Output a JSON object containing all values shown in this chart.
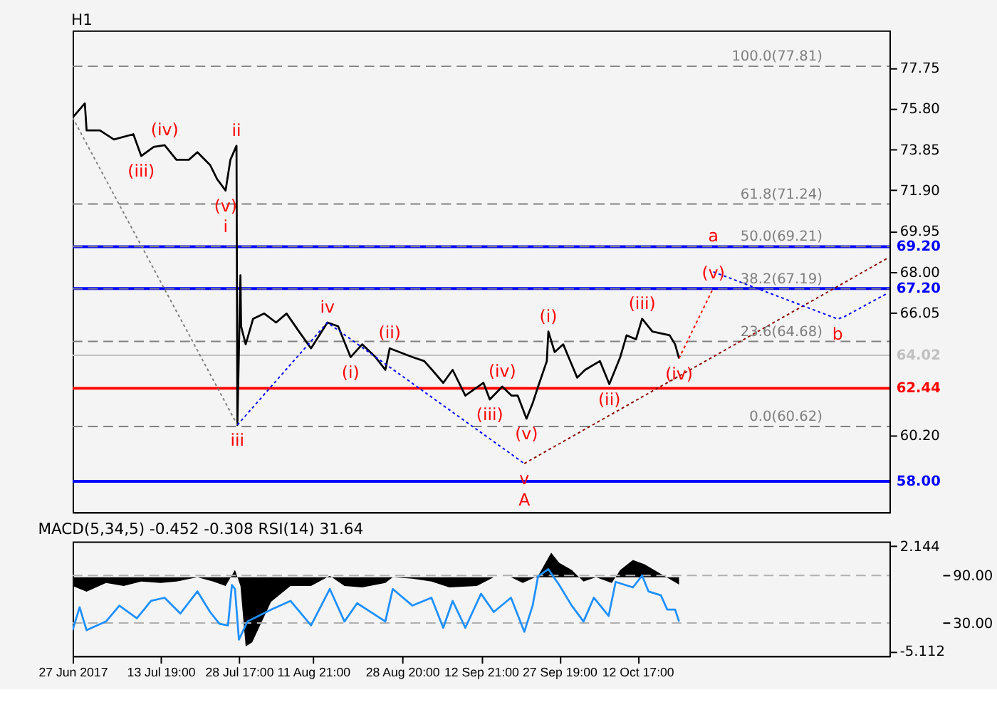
{
  "chart_data": [
    {
      "type": "line",
      "title": "H1",
      "xlim": [
        "2017-06-27T00:00",
        "2017-11-29T18:00"
      ],
      "tick_labels": "y",
      "ylim": [
        56.53,
        79.52
      ],
      "yticks": [
        {
          "value": 60.2,
          "label": "60.20"
        },
        {
          "value": 66.05,
          "label": "66.05"
        },
        {
          "value": 68,
          "label": "68.00"
        },
        {
          "value": 69.95,
          "label": "69.95"
        },
        {
          "value": 71.9,
          "label": "71.90"
        },
        {
          "value": 73.85,
          "label": "73.85"
        },
        {
          "value": 75.8,
          "label": "75.80"
        },
        {
          "value": 77.75,
          "label": "77.75"
        }
      ],
      "grid": false,
      "series": [
        {
          "color": "#000000",
          "line_style": "solid",
          "x": [
            "2017-06-27T00:00",
            "2017-06-29T08:00",
            "2017-06-29T16:00",
            "2017-07-02T05:00",
            "2017-07-04T21:00",
            "2017-07-08T14:00",
            "2017-07-10T02:00",
            "2017-07-12T11:00",
            "2017-07-14T13:00",
            "2017-07-16T19:00",
            "2017-07-19T04:00",
            "2017-07-20T19:00",
            "2017-07-23T05:00",
            "2017-07-24T13:00",
            "2017-07-26T04:00",
            "2017-07-27T02:00",
            "2017-07-28T06:00",
            "2017-07-28T10:00",
            "2017-07-29T00:00",
            "2017-07-29T03:00",
            "2017-07-30T00:00",
            "2017-07-31T10:00",
            "2017-08-02T13:00",
            "2017-08-04T19:00",
            "2017-08-06T19:00",
            "2017-08-09T04:00",
            "2017-08-11T11:00",
            "2017-08-14T14:00",
            "2017-08-16T15:00",
            "2017-08-19T00:00",
            "2017-08-21T05:00",
            "2017-08-23T18:00",
            "2017-08-25T15:00",
            "2017-08-26T11:00",
            "2017-08-30T19:00",
            "2017-09-02T01:00",
            "2017-09-03T13:00",
            "2017-09-05T16:00",
            "2017-09-07T11:00",
            "2017-09-09T21:00",
            "2017-09-13T08:00",
            "2017-09-14T13:00",
            "2017-09-16T22:00",
            "2017-09-18T17:00",
            "2017-09-19T21:00",
            "2017-09-21T13:00",
            "2017-09-22T17:00",
            "2017-09-23T18:00",
            "2017-09-25T10:00",
            "2017-09-25T17:00",
            "2017-09-26T22:00",
            "2017-09-28T13:00",
            "2017-10-01T05:00",
            "2017-10-02T17:00",
            "2017-10-05T13:00",
            "2017-10-07T08:00",
            "2017-10-09T10:00",
            "2017-10-10T15:00",
            "2017-10-12T10:00",
            "2017-10-13T14:00",
            "2017-10-15T13:00",
            "2017-10-18T20:00",
            "2017-10-19T21:00",
            "2017-10-20T15:00"
          ],
          "values": [
            75.36,
            76.04,
            74.75,
            74.75,
            74.32,
            74.57,
            73.53,
            73.96,
            74.05,
            73.35,
            73.35,
            73.71,
            73.1,
            72.43,
            71.88,
            73.35,
            74.02,
            60.69,
            67.84,
            65.4,
            64.54,
            65.76,
            66.01,
            65.58,
            66.01,
            65.15,
            64.35,
            65.58,
            65.4,
            63.93,
            64.54,
            63.93,
            63.32,
            64.35,
            63.93,
            63.74,
            63.32,
            62.7,
            63.32,
            62.09,
            62.7,
            61.91,
            62.52,
            62.09,
            62.09,
            60.99,
            61.72,
            62.52,
            63.74,
            65.15,
            64.17,
            64.54,
            62.95,
            63.32,
            63.74,
            62.64,
            63.93,
            64.97,
            64.78,
            65.76,
            65.15,
            64.97,
            64.54,
            63.87
          ]
        },
        {
          "color": "#808080",
          "line_style": "dotted",
          "x": [
            "2017-06-27T00:00",
            "2017-07-28T10:00"
          ],
          "values": [
            75.36,
            60.69
          ]
        },
        {
          "color": "#0000ff",
          "line_style": "dotted",
          "x": [
            "2017-07-28T10:00",
            "2017-08-14T14:00",
            "2017-09-21T03:00"
          ],
          "values": [
            60.69,
            65.58,
            58.85
          ]
        },
        {
          "color": "#8b0000",
          "line_style": "dotted",
          "x": [
            "2017-09-21T03:00",
            "2017-11-29T07:00"
          ],
          "values": [
            58.85,
            68.64
          ]
        },
        {
          "color": "#ff0000",
          "line_style": "dotted",
          "x": [
            "2017-10-20T15:00",
            "2017-10-27T04:00"
          ],
          "values": [
            63.87,
            67.23
          ]
        },
        {
          "color": "#0000ff",
          "line_style": "dotted",
          "x": [
            "2017-10-27T04:00",
            "2017-11-19T21:00",
            "2017-11-21T02:00",
            "2017-11-29T07:00"
          ],
          "values": [
            68.0,
            65.75,
            65.85,
            66.97
          ]
        }
      ],
      "ref_lines": [
        {
          "axis": "y",
          "value": 77.81,
          "label": "100.0(77.81)",
          "color": "#808080",
          "line_style": "dashed"
        },
        {
          "axis": "y",
          "value": 71.24,
          "label": "61.8(71.24)",
          "color": "#808080",
          "line_style": "dashed"
        },
        {
          "axis": "y",
          "value": 69.21,
          "label": "50.0(69.21)",
          "color": "#808080",
          "line_style": "dashed"
        },
        {
          "axis": "y",
          "value": 67.19,
          "label": "38.2(67.19)",
          "color": "#808080",
          "line_style": "dashed"
        },
        {
          "axis": "y",
          "value": 64.68,
          "label": "23.6(64.68)",
          "color": "#808080",
          "line_style": "dashed"
        },
        {
          "axis": "y",
          "value": 60.62,
          "label": "0.0(60.62)",
          "color": "#808080",
          "line_style": "dashed"
        },
        {
          "axis": "y",
          "value": 69.2,
          "label": "69.20",
          "color": "#0000ff",
          "line_style": "solid"
        },
        {
          "axis": "y",
          "value": 67.2,
          "label": "67.20",
          "color": "#0000ff",
          "line_style": "solid"
        },
        {
          "axis": "y",
          "value": 64.02,
          "label": "64.02",
          "color": "#c0c0c0",
          "line_style": "solid"
        },
        {
          "axis": "y",
          "value": 62.44,
          "label": "62.44",
          "color": "#ff0000",
          "line_style": "solid"
        },
        {
          "axis": "y",
          "value": 58.0,
          "label": "58.00",
          "color": "#0000ff",
          "line_style": "solid"
        }
      ],
      "annotations": [
        {
          "text": "(iv)",
          "x": "2017-07-14T13:00",
          "y": 74.05
        },
        {
          "text": "(iii)",
          "x": "2017-07-10T02:00",
          "y": 73.53
        },
        {
          "text": "(v)",
          "x": "2017-07-26T04:00",
          "y": 71.88
        },
        {
          "text": "ii",
          "x": "2017-07-28T06:00",
          "y": 74.02
        },
        {
          "text": "i",
          "x": "2017-07-26T04:00",
          "y": 71.88
        },
        {
          "text": "iii",
          "x": "2017-07-28T10:00",
          "y": 60.69
        },
        {
          "text": "iv",
          "x": "2017-08-14T14:00",
          "y": 65.58
        },
        {
          "text": "(ii)",
          "x": "2017-08-26T11:00",
          "y": 64.35
        },
        {
          "text": "(i)",
          "x": "2017-08-19T00:00",
          "y": 63.93
        },
        {
          "text": "(iv)",
          "x": "2017-09-16T22:00",
          "y": 62.52
        },
        {
          "text": "(iii)",
          "x": "2017-09-14T13:00",
          "y": 61.91
        },
        {
          "text": "(v)",
          "x": "2017-09-21T13:00",
          "y": 60.99
        },
        {
          "text": "v",
          "x": "2017-09-21T03:00",
          "y": 58.85
        },
        {
          "text": "A",
          "x": "2017-09-21T03:00",
          "y": 58.85
        },
        {
          "text": "(i)",
          "x": "2017-09-25T17:00",
          "y": 65.15
        },
        {
          "text": "(ii)",
          "x": "2017-10-07T08:00",
          "y": 62.64
        },
        {
          "text": "(iii)",
          "x": "2017-10-13T14:00",
          "y": 65.76
        },
        {
          "text": "(iv)",
          "x": "2017-10-20T15:00",
          "y": 63.87
        },
        {
          "text": "(v)",
          "x": "2017-10-27T04:00",
          "y": 67.23
        },
        {
          "text": "a",
          "x": "2017-10-27T04:00",
          "y": 68.0
        },
        {
          "text": "b",
          "x": "2017-11-19T21:00",
          "y": 65.75
        }
      ]
    },
    {
      "type": "area",
      "title": "MACD(5,34,5) -0.452 -0.308 RSI(14) 31.64",
      "xlim": [
        "2017-06-27T00:00",
        "2017-11-29T18:00"
      ],
      "xticks": [
        {
          "value": "2017-06-27T00:00",
          "label": "27 Jun 2017"
        },
        {
          "value": "2017-07-13T19:00",
          "label": "13 Jul 19:00"
        },
        {
          "value": "2017-07-28T17:00",
          "label": "28 Jul 17:00"
        },
        {
          "value": "2017-08-11T21:00",
          "label": "11 Aug 21:00"
        },
        {
          "value": "2017-08-28T20:00",
          "label": "28 Aug 20:00"
        },
        {
          "value": "2017-09-12T21:00",
          "label": "12 Sep 21:00"
        },
        {
          "value": "2017-09-27T19:00",
          "label": "27 Sep 19:00"
        },
        {
          "value": "2017-10-12T17:00",
          "label": "12 Oct 17:00"
        }
      ],
      "ylim": [
        -5.45,
        2.48
      ],
      "yticks": [
        {
          "value": 2.144,
          "label": "2.144"
        },
        {
          "value": -5.112,
          "label": "-5.112"
        }
      ],
      "y2lim": [
        -11.5,
        133
      ],
      "y2ticks": [
        {
          "value": 90,
          "label": "90.00"
        },
        {
          "value": 30,
          "label": "30.00"
        }
      ],
      "grid": false,
      "series": [
        {
          "color": "#000000",
          "type": "area",
          "x": [
            "2017-06-27T00:00",
            "2017-06-29T16:00",
            "2017-07-03T09:00",
            "2017-07-06T18:00",
            "2017-07-10T02:00",
            "2017-07-13T19:00",
            "2017-07-16T19:00",
            "2017-07-20T19:00",
            "2017-07-23T19:00",
            "2017-07-26T04:00",
            "2017-07-27T23:00",
            "2017-07-29T00:00",
            "2017-07-30T00:00",
            "2017-07-31T06:00",
            "2017-08-03T20:00",
            "2017-08-07T13:00",
            "2017-08-11T11:00",
            "2017-08-15T01:00",
            "2017-08-17T20:00",
            "2017-08-21T05:00",
            "2017-08-25T15:00",
            "2017-08-27T01:00",
            "2017-08-30T19:00",
            "2017-09-03T10:00",
            "2017-09-06T20:00",
            "2017-09-12T02:00",
            "2017-09-15T07:00",
            "2017-09-18T14:00",
            "2017-09-20T20:00",
            "2017-09-23T18:00",
            "2017-09-26T06:00",
            "2017-09-27T19:00",
            "2017-09-30T04:00",
            "2017-10-02T10:00",
            "2017-10-04T19:00",
            "2017-10-07T19:00",
            "2017-10-09T10:00",
            "2017-10-11T20:00",
            "2017-10-14T01:00",
            "2017-10-17T19:00",
            "2017-10-20T15:00"
          ],
          "values": [
            -0.6,
            -1.0,
            -0.4,
            -0.6,
            -0.3,
            -0.4,
            -0.3,
            0.0,
            -0.3,
            -0.6,
            0.5,
            -0.6,
            -4.8,
            -4.5,
            -1.7,
            -0.6,
            -0.6,
            0.1,
            -0.6,
            -0.7,
            -0.4,
            0.0,
            -0.1,
            -0.3,
            -0.7,
            -0.6,
            0.0,
            0.0,
            -0.4,
            0.1,
            1.7,
            1.0,
            0.5,
            -0.3,
            0.0,
            -0.4,
            0.5,
            1.2,
            0.9,
            0.1,
            -0.5
          ]
        },
        {
          "color": "#1e90ff",
          "type": "line",
          "axis": "y2",
          "x": [
            "2017-06-27T00:00",
            "2017-06-28T08:00",
            "2017-06-29T16:00",
            "2017-07-03T09:00",
            "2017-07-05T22:00",
            "2017-07-09T06:00",
            "2017-07-11T23:00",
            "2017-07-14T13:00",
            "2017-07-17T13:00",
            "2017-07-20T19:00",
            "2017-07-23T05:00",
            "2017-07-25T00:00",
            "2017-07-26T15:00",
            "2017-07-27T09:00",
            "2017-07-27T23:00",
            "2017-07-28T17:00",
            "2017-07-30T08:00",
            "2017-08-03T20:00",
            "2017-08-07T13:00",
            "2017-08-11T11:00",
            "2017-08-15T01:00",
            "2017-08-17T20:00",
            "2017-08-20T06:00",
            "2017-08-25T15:00",
            "2017-08-27T01:00",
            "2017-08-30T19:00",
            "2017-09-03T10:00",
            "2017-09-05T16:00",
            "2017-09-07T11:00",
            "2017-09-09T21:00",
            "2017-09-12T21:00",
            "2017-09-15T07:00",
            "2017-09-18T14:00",
            "2017-09-21T03:00",
            "2017-09-22T17:00",
            "2017-09-23T18:00",
            "2017-09-25T17:00",
            "2017-09-27T19:00",
            "2017-09-30T04:00",
            "2017-10-02T10:00",
            "2017-10-04T09:00",
            "2017-10-07T05:00",
            "2017-10-08T13:00",
            "2017-10-11T20:00",
            "2017-10-13T14:00",
            "2017-10-14T19:00",
            "2017-10-17T04:00",
            "2017-10-18T09:00",
            "2017-10-19T21:00",
            "2017-10-20T15:00"
          ],
          "values": [
            21,
            50,
            21,
            32,
            52,
            36,
            58,
            62,
            42,
            70,
            44,
            29,
            27,
            78,
            73,
            9,
            32,
            47,
            58,
            27,
            73,
            32,
            55,
            32,
            73,
            52,
            62,
            24,
            58,
            24,
            67,
            44,
            62,
            19,
            52,
            89,
            98,
            78,
            52,
            32,
            62,
            39,
            82,
            75,
            90,
            70,
            65,
            47,
            47,
            32
          ]
        }
      ],
      "ref_lines": [
        {
          "axis": "y2",
          "value": 90,
          "color": "#b0b0b0",
          "line_style": "dashed"
        },
        {
          "axis": "y2",
          "value": 30,
          "color": "#b0b0b0",
          "line_style": "dashed"
        }
      ]
    }
  ]
}
